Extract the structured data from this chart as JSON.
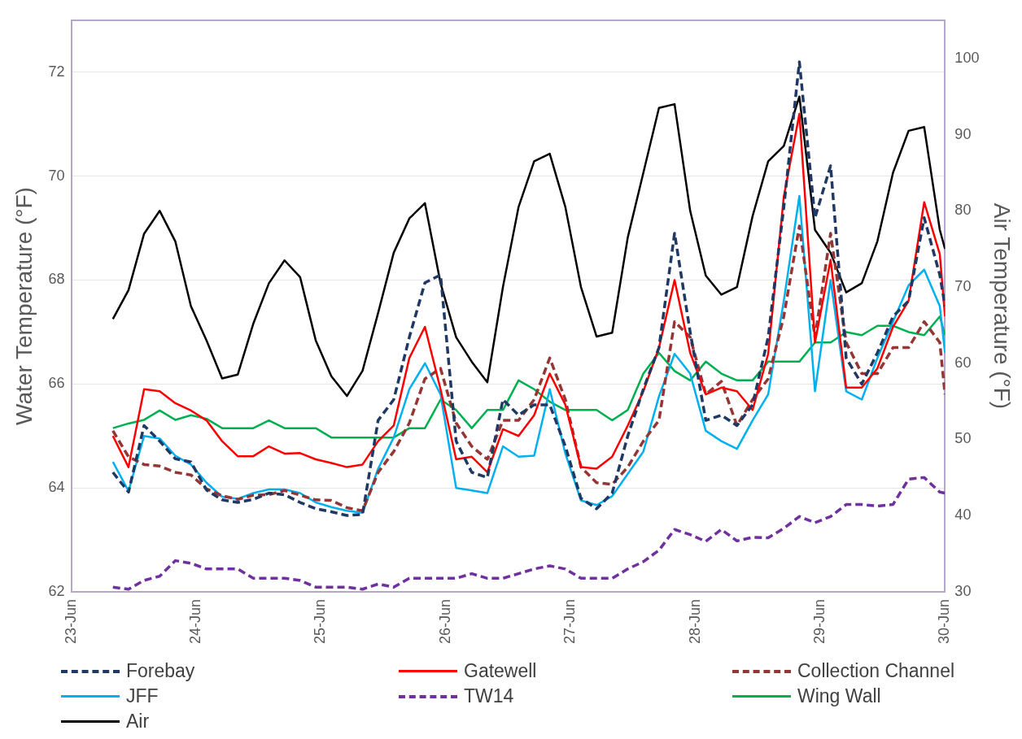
{
  "chart_data": {
    "type": "line",
    "ylabel": "Water Temperature (°F)",
    "y2label": "Air Temperature (°F)",
    "x": [
      "--06-23T08:00",
      "--06-23T11:00",
      "--06-23T14:00",
      "--06-23T17:00",
      "--06-23T20:00",
      "--06-23T23:00",
      "--06-24T02:00",
      "--06-24T05:00",
      "--06-24T08:00",
      "--06-24T11:00",
      "--06-24T14:00",
      "--06-24T17:00",
      "--06-24T20:00",
      "--06-24T23:00",
      "--06-25T02:00",
      "--06-25T05:00",
      "--06-25T08:00",
      "--06-25T11:00",
      "--06-25T14:00",
      "--06-25T17:00",
      "--06-25T20:00",
      "--06-25T23:00",
      "--06-26T02:00",
      "--06-26T05:00",
      "--06-26T08:00",
      "--06-26T11:00",
      "--06-26T14:00",
      "--06-26T17:00",
      "--06-26T20:00",
      "--06-26T23:00",
      "--06-27T02:00",
      "--06-27T05:00",
      "--06-27T08:00",
      "--06-27T11:00",
      "--06-27T14:00",
      "--06-27T17:00",
      "--06-27T20:00",
      "--06-27T23:00",
      "--06-28T02:00",
      "--06-28T05:00",
      "--06-28T08:00",
      "--06-28T11:00",
      "--06-28T14:00",
      "--06-28T17:00",
      "--06-28T20:00",
      "--06-28T23:00",
      "--06-29T02:00",
      "--06-29T05:00",
      "--06-29T08:00",
      "--06-29T11:00",
      "--06-29T14:00",
      "--06-29T17:00",
      "--06-29T20:00",
      "--06-29T23:00",
      "--06-30T00:00"
    ],
    "series": [
      {
        "name": "Forebay",
        "color": "#1f3864",
        "line_style": "dashed",
        "values": [
          64.3,
          63.92,
          65.2,
          64.9,
          64.56,
          64.5,
          63.96,
          63.77,
          63.72,
          63.78,
          63.9,
          63.87,
          63.72,
          63.6,
          63.54,
          63.47,
          63.49,
          65.3,
          65.7,
          66.9,
          67.95,
          68.1,
          64.9,
          64.3,
          64.2,
          65.7,
          65.4,
          65.6,
          65.6,
          64.8,
          63.8,
          63.6,
          63.9,
          65.0,
          65.9,
          66.7,
          68.9,
          67.0,
          65.3,
          65.4,
          65.2,
          65.6,
          66.9,
          69.4,
          72.2,
          69.2,
          70.2,
          66.5,
          66.0,
          66.6,
          67.3,
          67.6,
          69.2,
          68.1,
          67.5
        ]
      },
      {
        "name": "Gatewell",
        "color": "#ff0000",
        "line_style": "solid",
        "values": [
          65.0,
          64.4,
          65.9,
          65.86,
          65.63,
          65.49,
          65.3,
          64.9,
          64.61,
          64.61,
          64.8,
          64.66,
          64.67,
          64.55,
          64.48,
          64.4,
          64.45,
          64.9,
          65.2,
          66.5,
          67.1,
          65.9,
          64.55,
          64.6,
          64.3,
          65.13,
          65.0,
          65.4,
          66.2,
          65.6,
          64.4,
          64.37,
          64.6,
          65.2,
          65.86,
          66.7,
          68.0,
          66.6,
          65.8,
          65.93,
          65.86,
          65.5,
          66.58,
          69.6,
          71.2,
          66.8,
          68.39,
          65.93,
          65.93,
          66.3,
          67.1,
          67.6,
          69.5,
          68.5,
          67.3
        ]
      },
      {
        "name": "Collection Channel",
        "color": "#943634",
        "line_style": "dashed",
        "values": [
          65.1,
          64.6,
          64.45,
          64.42,
          64.3,
          64.25,
          63.98,
          63.85,
          63.78,
          63.86,
          63.87,
          63.95,
          63.86,
          63.77,
          63.76,
          63.62,
          63.56,
          64.3,
          64.7,
          65.25,
          66.1,
          66.3,
          65.25,
          64.8,
          64.55,
          65.3,
          65.3,
          65.7,
          66.5,
          65.7,
          64.4,
          64.1,
          64.07,
          64.4,
          64.9,
          65.3,
          67.2,
          66.9,
          65.8,
          66.05,
          65.2,
          65.7,
          66.1,
          67.3,
          69.04,
          66.9,
          68.9,
          66.8,
          66.2,
          66.2,
          66.7,
          66.7,
          67.2,
          66.8,
          65.8
        ]
      },
      {
        "name": "JFF",
        "color": "#00b0f0",
        "line_style": "solid",
        "values": [
          64.5,
          63.94,
          65.0,
          64.95,
          64.62,
          64.45,
          64.1,
          63.83,
          63.79,
          63.9,
          63.97,
          63.97,
          63.9,
          63.72,
          63.63,
          63.56,
          63.52,
          64.37,
          64.97,
          65.9,
          66.4,
          65.8,
          64.0,
          63.95,
          63.9,
          64.8,
          64.6,
          64.62,
          65.9,
          64.66,
          63.76,
          63.67,
          63.84,
          64.27,
          64.7,
          65.76,
          66.58,
          66.2,
          65.1,
          64.9,
          64.75,
          65.3,
          65.8,
          67.6,
          69.62,
          65.86,
          68.0,
          65.86,
          65.7,
          66.5,
          67.2,
          67.9,
          68.2,
          67.5,
          66.6
        ]
      },
      {
        "name": "TW14",
        "color": "#7030a0",
        "line_style": "dashed",
        "values": [
          62.09,
          62.05,
          62.22,
          62.3,
          62.6,
          62.55,
          62.44,
          62.44,
          62.44,
          62.26,
          62.26,
          62.26,
          62.22,
          62.09,
          62.09,
          62.09,
          62.05,
          62.15,
          62.09,
          62.26,
          62.26,
          62.26,
          62.26,
          62.35,
          62.26,
          62.26,
          62.35,
          62.44,
          62.5,
          62.44,
          62.26,
          62.26,
          62.26,
          62.44,
          62.58,
          62.8,
          63.2,
          63.1,
          62.97,
          63.2,
          62.98,
          63.05,
          63.04,
          63.22,
          63.45,
          63.33,
          63.45,
          63.68,
          63.68,
          63.65,
          63.68,
          64.17,
          64.2,
          63.92,
          63.9
        ]
      },
      {
        "name": "Wing Wall",
        "color": "#00b050",
        "line_style": "solid",
        "values": [
          65.15,
          65.24,
          65.31,
          65.49,
          65.31,
          65.4,
          65.33,
          65.15,
          65.15,
          65.15,
          65.3,
          65.15,
          65.15,
          65.15,
          64.97,
          64.97,
          64.97,
          64.97,
          64.97,
          65.15,
          65.15,
          65.7,
          65.5,
          65.15,
          65.5,
          65.5,
          66.07,
          65.9,
          65.66,
          65.5,
          65.5,
          65.5,
          65.3,
          65.5,
          66.2,
          66.6,
          66.25,
          66.07,
          66.43,
          66.2,
          66.07,
          66.07,
          66.43,
          66.43,
          66.43,
          66.8,
          66.8,
          67.0,
          66.94,
          67.12,
          67.12,
          67.0,
          66.94,
          67.3,
          66.94
        ]
      },
      {
        "name": "Air",
        "color": "#000000",
        "line_style": "solid",
        "axis": "y2",
        "values": [
          65.8,
          69.6,
          77,
          80,
          76,
          67.5,
          63,
          58,
          58.5,
          65.2,
          70.5,
          73.5,
          71.3,
          63,
          58.3,
          55.7,
          59,
          66.6,
          74.5,
          79,
          81,
          70.5,
          63.4,
          60.2,
          57.5,
          70,
          80.5,
          86.5,
          87.5,
          80.5,
          70,
          63.5,
          64,
          76.5,
          85,
          93.5,
          94,
          80,
          71.5,
          69,
          70,
          79.3,
          86.5,
          88.5,
          95,
          77.5,
          74.5,
          69.3,
          70.5,
          76,
          85,
          90.5,
          91,
          77.5,
          75
        ]
      }
    ],
    "xlim": [
      "--06-23",
      "--06-30"
    ],
    "xticks": [
      {
        "value": "--06-23",
        "label": "23-Jun"
      },
      {
        "value": "--06-24",
        "label": "24-Jun"
      },
      {
        "value": "--06-25",
        "label": "25-Jun"
      },
      {
        "value": "--06-26",
        "label": "26-Jun"
      },
      {
        "value": "--06-27",
        "label": "27-Jun"
      },
      {
        "value": "--06-28",
        "label": "28-Jun"
      },
      {
        "value": "--06-29",
        "label": "29-Jun"
      },
      {
        "value": "--06-30",
        "label": "30-Jun"
      }
    ],
    "ylim": [
      62,
      73
    ],
    "yticks": [
      62,
      64,
      66,
      68,
      70,
      72
    ],
    "y2lim": [
      30,
      105
    ],
    "y2ticks": [
      30,
      40,
      50,
      60,
      70,
      80,
      90,
      100
    ],
    "grid": "y",
    "legend": "bottom",
    "marker": "none"
  }
}
